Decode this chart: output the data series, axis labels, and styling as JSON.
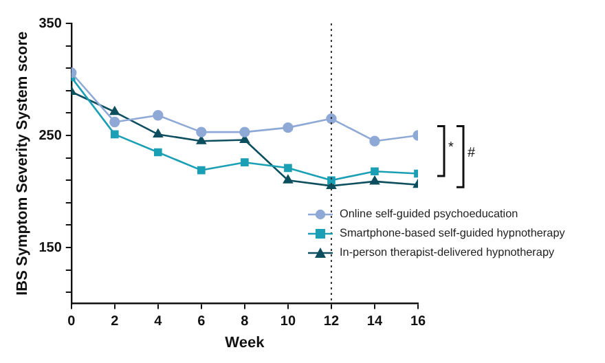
{
  "chart_data": {
    "type": "line",
    "xlabel": "Week",
    "ylabel": "IBS Symptom Severity System score",
    "x": [
      0,
      2,
      4,
      6,
      8,
      10,
      12,
      14,
      16
    ],
    "series": [
      {
        "name": "Online self-guided psychoeducation",
        "color": "#8fa9d6",
        "marker": "circle",
        "values": [
          306,
          262,
          268,
          253,
          253,
          257,
          265,
          245,
          250
        ]
      },
      {
        "name": "Smartphone-based self-guided hypnotherapy",
        "color": "#1a9fb5",
        "marker": "square",
        "values": [
          302,
          251,
          235,
          219,
          226,
          221,
          210,
          218,
          216
        ]
      },
      {
        "name": "In-person therapist-delivered hypnotherapy",
        "color": "#0d4f5f",
        "marker": "triangle",
        "values": [
          289,
          271,
          251,
          245,
          246,
          210,
          205,
          209,
          206
        ]
      }
    ],
    "xlim": [
      0,
      16
    ],
    "xticks": [
      0,
      2,
      4,
      6,
      8,
      10,
      12,
      14,
      16
    ],
    "ylim": [
      100,
      350
    ],
    "yticks": [
      {
        "value": 110,
        "label": null
      },
      {
        "value": 130,
        "label": null
      },
      150,
      {
        "value": 170,
        "label": null
      },
      {
        "value": 190,
        "label": null
      },
      {
        "value": 210,
        "label": null
      },
      {
        "value": 230,
        "label": null
      },
      250,
      {
        "value": 270,
        "label": null
      },
      {
        "value": 290,
        "label": null
      },
      {
        "value": 310,
        "label": null
      },
      {
        "value": 330,
        "label": null
      },
      350
    ],
    "ref_lines": [
      {
        "axis": "x",
        "value": 12,
        "line_style": "dotted",
        "color": "#333333"
      }
    ],
    "annotations": [
      "*",
      "#"
    ],
    "legend": "bottom right",
    "grid": false
  }
}
